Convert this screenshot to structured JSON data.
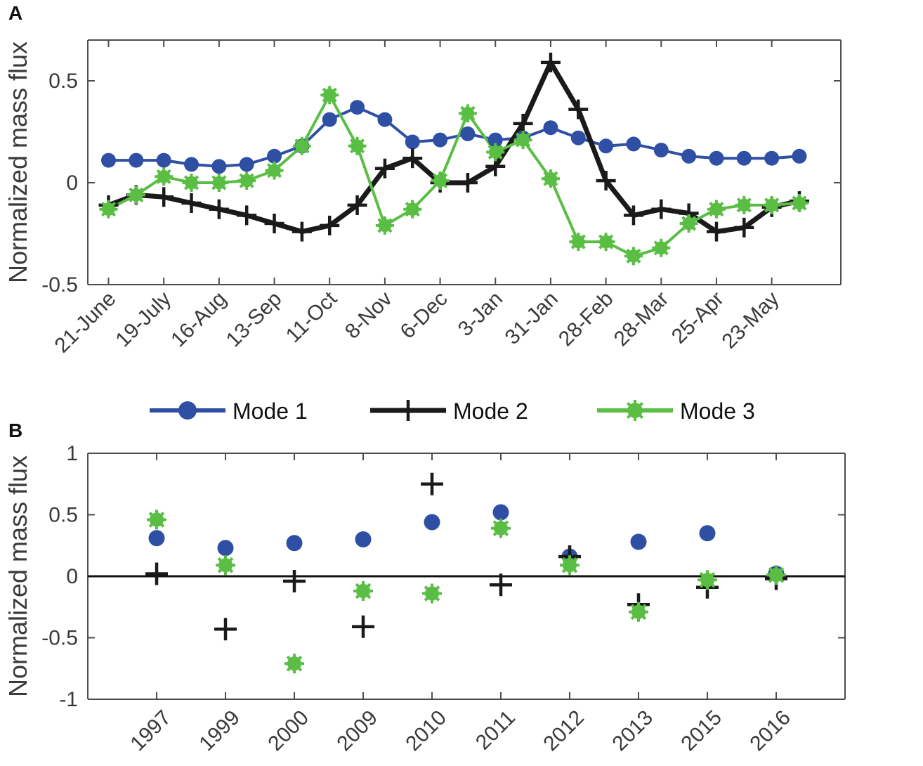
{
  "chart_data": [
    {
      "panel": "A",
      "type": "line",
      "ylabel": "Normalized mass flux",
      "ylim": [
        -0.5,
        0.7
      ],
      "yticks": [
        -0.5,
        0,
        0.5
      ],
      "ytick_labels": [
        "-0.5",
        "0",
        "0.5"
      ],
      "x": [
        0,
        1,
        2,
        3,
        4,
        5,
        6,
        7,
        8,
        9,
        10,
        11,
        12,
        13,
        14,
        15,
        16,
        17,
        18,
        19,
        20,
        21,
        22,
        23,
        24,
        25
      ],
      "xlim": [
        -0.75,
        26.5
      ],
      "xtick_positions": [
        0,
        2,
        4,
        6,
        8,
        10,
        12,
        14,
        16,
        18,
        20,
        22,
        24
      ],
      "xtick_labels": [
        "21-June",
        "19-July",
        "16-Aug",
        "13-Sep",
        "11-Oct",
        "8-Nov",
        "6-Dec",
        "3-Jan",
        "31-Jan",
        "28-Feb",
        "28-Mar",
        "25-Apr",
        "23-May"
      ],
      "series": [
        {
          "name": "Mode 1",
          "color": "#2e4fa3",
          "marker": "circle",
          "values": [
            0.11,
            0.11,
            0.11,
            0.09,
            0.08,
            0.09,
            0.13,
            0.18,
            0.31,
            0.37,
            0.31,
            0.2,
            0.21,
            0.24,
            0.21,
            0.22,
            0.27,
            0.22,
            0.18,
            0.19,
            0.16,
            0.13,
            0.12,
            0.12,
            0.12,
            0.13
          ]
        },
        {
          "name": "Mode 2",
          "color": "#1a1a1a",
          "marker": "plus",
          "values": [
            -0.11,
            -0.06,
            -0.07,
            -0.1,
            -0.13,
            -0.16,
            -0.2,
            -0.24,
            -0.21,
            -0.11,
            0.07,
            0.12,
            0.0,
            0.0,
            0.08,
            0.29,
            0.59,
            0.36,
            0.01,
            -0.16,
            -0.13,
            -0.15,
            -0.24,
            -0.22,
            -0.12,
            -0.09
          ]
        },
        {
          "name": "Mode 3",
          "color": "#5abe45",
          "marker": "asterisk",
          "values": [
            -0.13,
            -0.06,
            0.03,
            0.0,
            0.0,
            0.01,
            0.06,
            0.18,
            0.43,
            0.18,
            -0.21,
            -0.13,
            0.01,
            0.34,
            0.15,
            0.21,
            0.02,
            -0.29,
            -0.29,
            -0.36,
            -0.32,
            -0.2,
            -0.13,
            -0.11,
            -0.11,
            -0.1
          ]
        }
      ]
    },
    {
      "panel": "B",
      "type": "scatter",
      "ylabel": "Normalized mass flux",
      "ylim": [
        -1,
        1
      ],
      "yticks": [
        -1,
        -0.5,
        0,
        0.5,
        1
      ],
      "ytick_labels": [
        "-1",
        "-0.5",
        "0",
        "0.5",
        "1"
      ],
      "categories": [
        "1997",
        "1999",
        "2000",
        "2009",
        "2010",
        "2011",
        "2012",
        "2013",
        "2015",
        "2016"
      ],
      "xlim": [
        0,
        11
      ],
      "zero_line": true,
      "series": [
        {
          "name": "Mode 1",
          "color": "#2e4fa3",
          "marker": "circle",
          "values": [
            0.31,
            0.23,
            0.27,
            0.3,
            0.44,
            0.52,
            0.16,
            0.28,
            0.35,
            0.02
          ]
        },
        {
          "name": "Mode 2",
          "color": "#1a1a1a",
          "marker": "plus",
          "values": [
            0.02,
            -0.43,
            -0.04,
            -0.41,
            0.75,
            -0.07,
            0.16,
            -0.23,
            -0.09,
            -0.02
          ]
        },
        {
          "name": "Mode 3",
          "color": "#5abe45",
          "marker": "asterisk",
          "values": [
            0.46,
            0.09,
            -0.71,
            -0.12,
            -0.14,
            0.39,
            0.09,
            -0.29,
            -0.03,
            0.01
          ]
        }
      ]
    }
  ],
  "legend": {
    "items": [
      {
        "label": "Mode 1",
        "color": "#2e4fa3",
        "marker": "circle"
      },
      {
        "label": "Mode 2",
        "color": "#1a1a1a",
        "marker": "plus"
      },
      {
        "label": "Mode 3",
        "color": "#5abe45",
        "marker": "asterisk"
      }
    ]
  },
  "panel_labels": {
    "a": "A",
    "b": "B"
  }
}
